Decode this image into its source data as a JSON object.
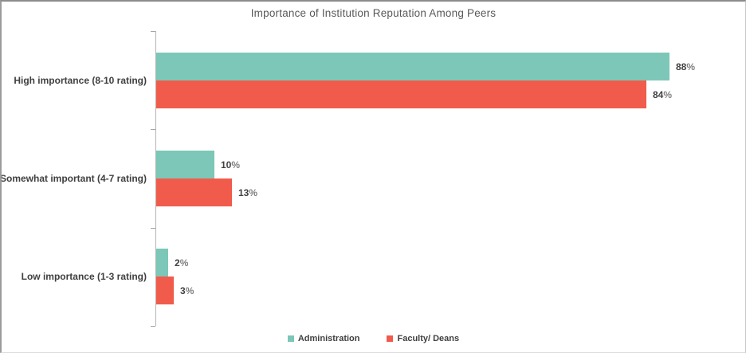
{
  "title": "Importance of Institution Reputation Among Peers",
  "chart_data": {
    "type": "bar",
    "orientation": "horizontal",
    "title": "Importance of Institution Reputation Among Peers",
    "categories": [
      "High importance (8-10 rating)",
      "Somewhat important (4-7 rating)",
      "Low importance (1-3 rating)"
    ],
    "series": [
      {
        "name": "Administration",
        "color": "#7cc7b7",
        "values": [
          88,
          10,
          2
        ]
      },
      {
        "name": "Faculty/ Deans",
        "color": "#f15b4b",
        "values": [
          84,
          13,
          3
        ]
      }
    ],
    "value_suffix": "%",
    "xlim": [
      0,
      100
    ],
    "grid": false,
    "legend_position": "bottom",
    "data_labels": true
  },
  "colors": {
    "series_administration": "#7cc7b7",
    "series_faculty_deans": "#f15b4b",
    "title_text": "#595959",
    "label_text": "#404040",
    "percent_sign": "#7f7f7f",
    "axis_line": "#b3b3b3"
  }
}
